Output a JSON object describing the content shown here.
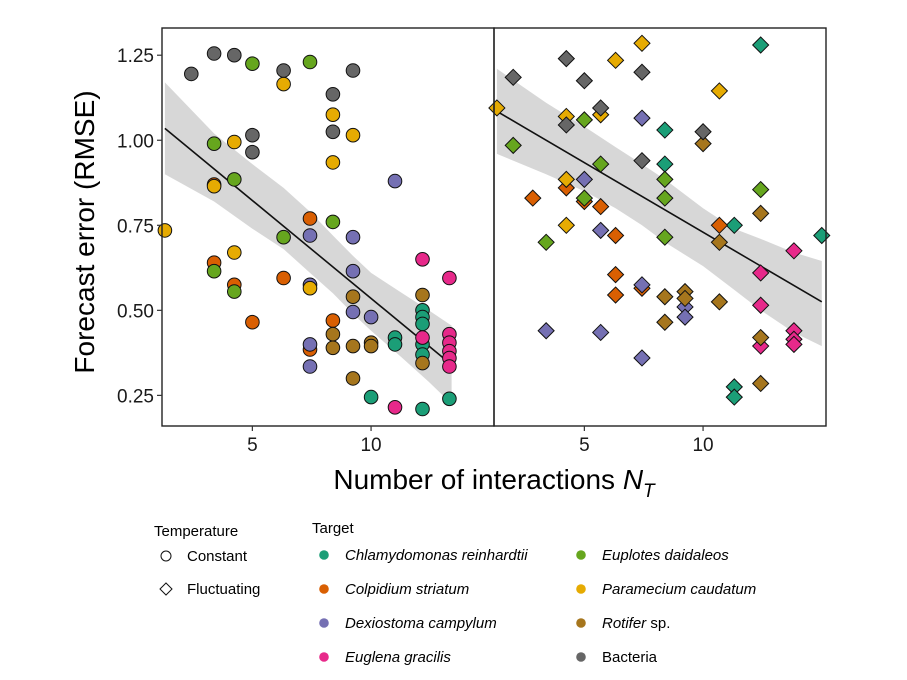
{
  "chart_data": {
    "type": "scatter",
    "xlabel": "Number of interactions ",
    "xlabel_symbol": "N",
    "xlabel_subscript": "T",
    "ylabel": "Forecast error (RMSE)",
    "x_scale": "log",
    "xlim": [
      2.95,
      20.5
    ],
    "ylim": [
      0.16,
      1.33
    ],
    "x_ticks": [
      5,
      10
    ],
    "x_tick_labels": [
      "5",
      "10"
    ],
    "y_ticks": [
      0.25,
      0.5,
      0.75,
      1.0,
      1.25
    ],
    "y_tick_labels": [
      "0.25",
      "0.50",
      "0.75",
      "1.00",
      "1.25"
    ],
    "grid": false,
    "legend_position": "bottom",
    "legend_temperature": {
      "title": "Temperature",
      "items": [
        {
          "label": "Constant",
          "shape": "circle"
        },
        {
          "label": "Fluctuating",
          "shape": "diamond"
        }
      ]
    },
    "legend_target": {
      "title": "Target",
      "items": [
        {
          "key": "chl",
          "italic": "Chlamydomonas reinhardtii",
          "plain": "",
          "color": "#1b9e77"
        },
        {
          "key": "col",
          "italic": "Colpidium striatum",
          "plain": "",
          "color": "#d95f02"
        },
        {
          "key": "dex",
          "italic": "Dexiostoma campylum",
          "plain": "",
          "color": "#7570b3"
        },
        {
          "key": "eug",
          "italic": "Euglena gracilis",
          "plain": "",
          "color": "#e7298a"
        },
        {
          "key": "eup",
          "italic": "Euplotes daidaleos",
          "plain": "",
          "color": "#66a61e"
        },
        {
          "key": "par",
          "italic": "Paramecium caudatum",
          "plain": "",
          "color": "#e6ab02"
        },
        {
          "key": "rot",
          "italic": "Rotifer",
          "plain": " sp.",
          "color": "#a6761d"
        },
        {
          "key": "bac",
          "italic": "",
          "plain": "Bacteria",
          "color": "#666666"
        }
      ]
    },
    "panels": [
      {
        "temperature": "Constant",
        "trend": {
          "x": [
            3.0,
            16.0
          ],
          "y": [
            1.035,
            0.34
          ]
        },
        "band": {
          "x": [
            3.0,
            4.0,
            5.0,
            6.0,
            7.0,
            8.0,
            9.0,
            10.0,
            12.0,
            14.0,
            16.0
          ],
          "upper": [
            1.17,
            1.02,
            0.93,
            0.86,
            0.79,
            0.72,
            0.66,
            0.61,
            0.55,
            0.5,
            0.455
          ],
          "lower": [
            0.9,
            0.82,
            0.74,
            0.68,
            0.61,
            0.55,
            0.49,
            0.44,
            0.36,
            0.29,
            0.225
          ]
        },
        "points": [
          {
            "t": "chl",
            "x": 11.5,
            "y": 0.42
          },
          {
            "t": "chl",
            "x": 11.5,
            "y": 0.4
          },
          {
            "t": "chl",
            "x": 13.5,
            "y": 0.5
          },
          {
            "t": "chl",
            "x": 13.5,
            "y": 0.48
          },
          {
            "t": "chl",
            "x": 13.5,
            "y": 0.46
          },
          {
            "t": "chl",
            "x": 13.5,
            "y": 0.4
          },
          {
            "t": "chl",
            "x": 13.5,
            "y": 0.37
          },
          {
            "t": "chl",
            "x": 10.0,
            "y": 0.245
          },
          {
            "t": "chl",
            "x": 13.5,
            "y": 0.21
          },
          {
            "t": "chl",
            "x": 15.8,
            "y": 0.24
          },
          {
            "t": "col",
            "x": 4.0,
            "y": 0.87
          },
          {
            "t": "col",
            "x": 4.0,
            "y": 0.64
          },
          {
            "t": "col",
            "x": 4.5,
            "y": 0.575
          },
          {
            "t": "col",
            "x": 5.0,
            "y": 0.465
          },
          {
            "t": "col",
            "x": 6.0,
            "y": 0.595
          },
          {
            "t": "col",
            "x": 7.0,
            "y": 0.77
          },
          {
            "t": "col",
            "x": 7.0,
            "y": 0.385
          },
          {
            "t": "col",
            "x": 8.0,
            "y": 0.47
          },
          {
            "t": "dex",
            "x": 7.0,
            "y": 0.72
          },
          {
            "t": "dex",
            "x": 7.0,
            "y": 0.575
          },
          {
            "t": "dex",
            "x": 7.0,
            "y": 0.4
          },
          {
            "t": "dex",
            "x": 7.0,
            "y": 0.335
          },
          {
            "t": "dex",
            "x": 9.0,
            "y": 0.715
          },
          {
            "t": "dex",
            "x": 9.0,
            "y": 0.615
          },
          {
            "t": "dex",
            "x": 9.0,
            "y": 0.495
          },
          {
            "t": "dex",
            "x": 10.0,
            "y": 0.48
          },
          {
            "t": "dex",
            "x": 11.5,
            "y": 0.88
          },
          {
            "t": "eug",
            "x": 11.5,
            "y": 0.215
          },
          {
            "t": "eug",
            "x": 13.5,
            "y": 0.65
          },
          {
            "t": "eug",
            "x": 13.5,
            "y": 0.42
          },
          {
            "t": "eug",
            "x": 15.8,
            "y": 0.595
          },
          {
            "t": "eug",
            "x": 15.8,
            "y": 0.43
          },
          {
            "t": "eug",
            "x": 15.8,
            "y": 0.405
          },
          {
            "t": "eug",
            "x": 15.8,
            "y": 0.38
          },
          {
            "t": "eug",
            "x": 15.8,
            "y": 0.36
          },
          {
            "t": "eug",
            "x": 15.8,
            "y": 0.335
          },
          {
            "t": "eup",
            "x": 4.0,
            "y": 0.99
          },
          {
            "t": "eup",
            "x": 4.0,
            "y": 0.615
          },
          {
            "t": "eup",
            "x": 4.5,
            "y": 0.885
          },
          {
            "t": "eup",
            "x": 4.5,
            "y": 0.555
          },
          {
            "t": "eup",
            "x": 5.0,
            "y": 1.225
          },
          {
            "t": "eup",
            "x": 6.0,
            "y": 0.715
          },
          {
            "t": "eup",
            "x": 7.0,
            "y": 1.23
          },
          {
            "t": "eup",
            "x": 8.0,
            "y": 0.76
          },
          {
            "t": "par",
            "x": 3.0,
            "y": 0.735
          },
          {
            "t": "par",
            "x": 4.0,
            "y": 0.865
          },
          {
            "t": "par",
            "x": 4.5,
            "y": 0.995
          },
          {
            "t": "par",
            "x": 4.5,
            "y": 0.67
          },
          {
            "t": "par",
            "x": 6.0,
            "y": 1.165
          },
          {
            "t": "par",
            "x": 7.0,
            "y": 0.565
          },
          {
            "t": "par",
            "x": 8.0,
            "y": 1.075
          },
          {
            "t": "par",
            "x": 8.0,
            "y": 0.935
          },
          {
            "t": "par",
            "x": 9.0,
            "y": 1.015
          },
          {
            "t": "rot",
            "x": 8.0,
            "y": 0.43
          },
          {
            "t": "rot",
            "x": 8.0,
            "y": 0.39
          },
          {
            "t": "rot",
            "x": 9.0,
            "y": 0.54
          },
          {
            "t": "rot",
            "x": 9.0,
            "y": 0.395
          },
          {
            "t": "rot",
            "x": 9.0,
            "y": 0.3
          },
          {
            "t": "rot",
            "x": 10.0,
            "y": 0.405
          },
          {
            "t": "rot",
            "x": 10.0,
            "y": 0.395
          },
          {
            "t": "rot",
            "x": 13.5,
            "y": 0.545
          },
          {
            "t": "rot",
            "x": 13.5,
            "y": 0.345
          },
          {
            "t": "bac",
            "x": 3.5,
            "y": 1.195
          },
          {
            "t": "bac",
            "x": 4.0,
            "y": 1.255
          },
          {
            "t": "bac",
            "x": 4.5,
            "y": 1.25
          },
          {
            "t": "bac",
            "x": 5.0,
            "y": 1.015
          },
          {
            "t": "bac",
            "x": 5.0,
            "y": 0.965
          },
          {
            "t": "bac",
            "x": 6.0,
            "y": 1.205
          },
          {
            "t": "bac",
            "x": 8.0,
            "y": 1.135
          },
          {
            "t": "bac",
            "x": 8.0,
            "y": 1.025
          },
          {
            "t": "bac",
            "x": 9.0,
            "y": 1.205
          }
        ]
      },
      {
        "temperature": "Fluctuating",
        "trend": {
          "x": [
            3.0,
            20.0
          ],
          "y": [
            1.085,
            0.525
          ]
        },
        "band": {
          "x": [
            3.0,
            4.0,
            5.0,
            6.0,
            7.0,
            8.0,
            10.0,
            12.0,
            14.0,
            17.0,
            20.0
          ],
          "upper": [
            1.21,
            1.11,
            1.04,
            0.98,
            0.93,
            0.885,
            0.8,
            0.74,
            0.71,
            0.67,
            0.645
          ],
          "lower": [
            0.96,
            0.9,
            0.85,
            0.8,
            0.75,
            0.7,
            0.63,
            0.56,
            0.5,
            0.435,
            0.395
          ]
        },
        "points": [
          {
            "t": "chl",
            "x": 8.0,
            "y": 1.03
          },
          {
            "t": "chl",
            "x": 8.0,
            "y": 0.93
          },
          {
            "t": "chl",
            "x": 12.0,
            "y": 0.75
          },
          {
            "t": "chl",
            "x": 14.0,
            "y": 1.28
          },
          {
            "t": "chl",
            "x": 20.0,
            "y": 0.72
          },
          {
            "t": "chl",
            "x": 12.0,
            "y": 0.275
          },
          {
            "t": "chl",
            "x": 12.0,
            "y": 0.245
          },
          {
            "t": "col",
            "x": 3.7,
            "y": 0.83
          },
          {
            "t": "col",
            "x": 4.5,
            "y": 0.86
          },
          {
            "t": "col",
            "x": 5.0,
            "y": 0.82
          },
          {
            "t": "col",
            "x": 5.5,
            "y": 0.805
          },
          {
            "t": "col",
            "x": 6.0,
            "y": 0.72
          },
          {
            "t": "col",
            "x": 6.0,
            "y": 0.605
          },
          {
            "t": "col",
            "x": 6.0,
            "y": 0.545
          },
          {
            "t": "col",
            "x": 7.0,
            "y": 0.565
          },
          {
            "t": "col",
            "x": 11.0,
            "y": 0.75
          },
          {
            "t": "dex",
            "x": 4.0,
            "y": 0.44
          },
          {
            "t": "dex",
            "x": 5.0,
            "y": 0.885
          },
          {
            "t": "dex",
            "x": 5.5,
            "y": 0.735
          },
          {
            "t": "dex",
            "x": 5.5,
            "y": 0.435
          },
          {
            "t": "dex",
            "x": 7.0,
            "y": 1.065
          },
          {
            "t": "dex",
            "x": 7.0,
            "y": 0.575
          },
          {
            "t": "dex",
            "x": 7.0,
            "y": 0.36
          },
          {
            "t": "dex",
            "x": 9.0,
            "y": 0.51
          },
          {
            "t": "dex",
            "x": 9.0,
            "y": 0.48
          },
          {
            "t": "eug",
            "x": 14.0,
            "y": 0.61
          },
          {
            "t": "eug",
            "x": 14.0,
            "y": 0.515
          },
          {
            "t": "eug",
            "x": 14.0,
            "y": 0.395
          },
          {
            "t": "eug",
            "x": 17.0,
            "y": 0.675
          },
          {
            "t": "eug",
            "x": 17.0,
            "y": 0.44
          },
          {
            "t": "eug",
            "x": 17.0,
            "y": 0.415
          },
          {
            "t": "eug",
            "x": 17.0,
            "y": 0.4
          },
          {
            "t": "eup",
            "x": 3.3,
            "y": 0.985
          },
          {
            "t": "eup",
            "x": 4.0,
            "y": 0.7
          },
          {
            "t": "eup",
            "x": 5.0,
            "y": 1.06
          },
          {
            "t": "eup",
            "x": 5.0,
            "y": 0.83
          },
          {
            "t": "eup",
            "x": 5.5,
            "y": 0.93
          },
          {
            "t": "eup",
            "x": 8.0,
            "y": 0.885
          },
          {
            "t": "eup",
            "x": 8.0,
            "y": 0.83
          },
          {
            "t": "eup",
            "x": 8.0,
            "y": 0.715
          },
          {
            "t": "eup",
            "x": 14.0,
            "y": 0.855
          },
          {
            "t": "par",
            "x": 3.0,
            "y": 1.095
          },
          {
            "t": "par",
            "x": 4.5,
            "y": 1.07
          },
          {
            "t": "par",
            "x": 4.5,
            "y": 0.885
          },
          {
            "t": "par",
            "x": 4.5,
            "y": 0.75
          },
          {
            "t": "par",
            "x": 5.5,
            "y": 1.075
          },
          {
            "t": "par",
            "x": 6.0,
            "y": 1.235
          },
          {
            "t": "par",
            "x": 7.0,
            "y": 1.285
          },
          {
            "t": "par",
            "x": 11.0,
            "y": 1.145
          },
          {
            "t": "rot",
            "x": 8.0,
            "y": 0.54
          },
          {
            "t": "rot",
            "x": 8.0,
            "y": 0.465
          },
          {
            "t": "rot",
            "x": 9.0,
            "y": 0.555
          },
          {
            "t": "rot",
            "x": 9.0,
            "y": 0.535
          },
          {
            "t": "rot",
            "x": 10.0,
            "y": 0.99
          },
          {
            "t": "rot",
            "x": 11.0,
            "y": 0.7
          },
          {
            "t": "rot",
            "x": 11.0,
            "y": 0.525
          },
          {
            "t": "rot",
            "x": 14.0,
            "y": 0.785
          },
          {
            "t": "rot",
            "x": 14.0,
            "y": 0.42
          },
          {
            "t": "rot",
            "x": 14.0,
            "y": 0.285
          },
          {
            "t": "bac",
            "x": 3.3,
            "y": 1.185
          },
          {
            "t": "bac",
            "x": 4.5,
            "y": 1.24
          },
          {
            "t": "bac",
            "x": 4.5,
            "y": 1.045
          },
          {
            "t": "bac",
            "x": 5.0,
            "y": 1.175
          },
          {
            "t": "bac",
            "x": 5.5,
            "y": 1.095
          },
          {
            "t": "bac",
            "x": 7.0,
            "y": 1.2
          },
          {
            "t": "bac",
            "x": 7.0,
            "y": 0.94
          },
          {
            "t": "bac",
            "x": 10.0,
            "y": 1.025
          }
        ]
      }
    ]
  }
}
